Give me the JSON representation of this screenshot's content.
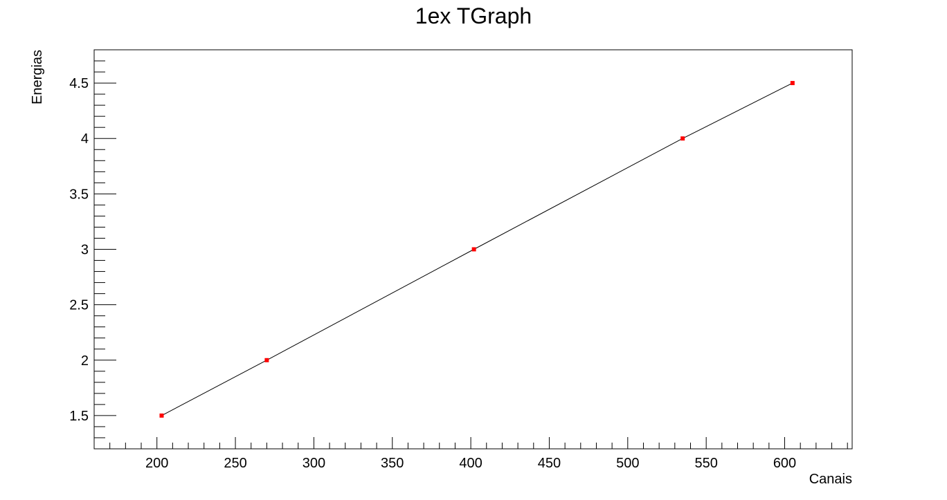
{
  "chart_data": {
    "type": "line",
    "title": "1ex TGraph",
    "xlabel": "Canais",
    "ylabel": "Energias",
    "xlim": [
      160,
      643
    ],
    "ylim": [
      1.2,
      4.8
    ],
    "x_ticks": [
      "200",
      "250",
      "300",
      "350",
      "400",
      "450",
      "500",
      "550",
      "600"
    ],
    "y_ticks": [
      "1.5",
      "2",
      "2.5",
      "3",
      "3.5",
      "4",
      "4.5"
    ],
    "series": [
      {
        "x": [
          203,
          270,
          402,
          535,
          605
        ],
        "y": [
          1.5,
          2.0,
          3.0,
          4.0,
          4.5
        ],
        "line_color": "#000000",
        "marker_color": "#ff0000"
      }
    ],
    "grid": false,
    "legend": "none"
  }
}
